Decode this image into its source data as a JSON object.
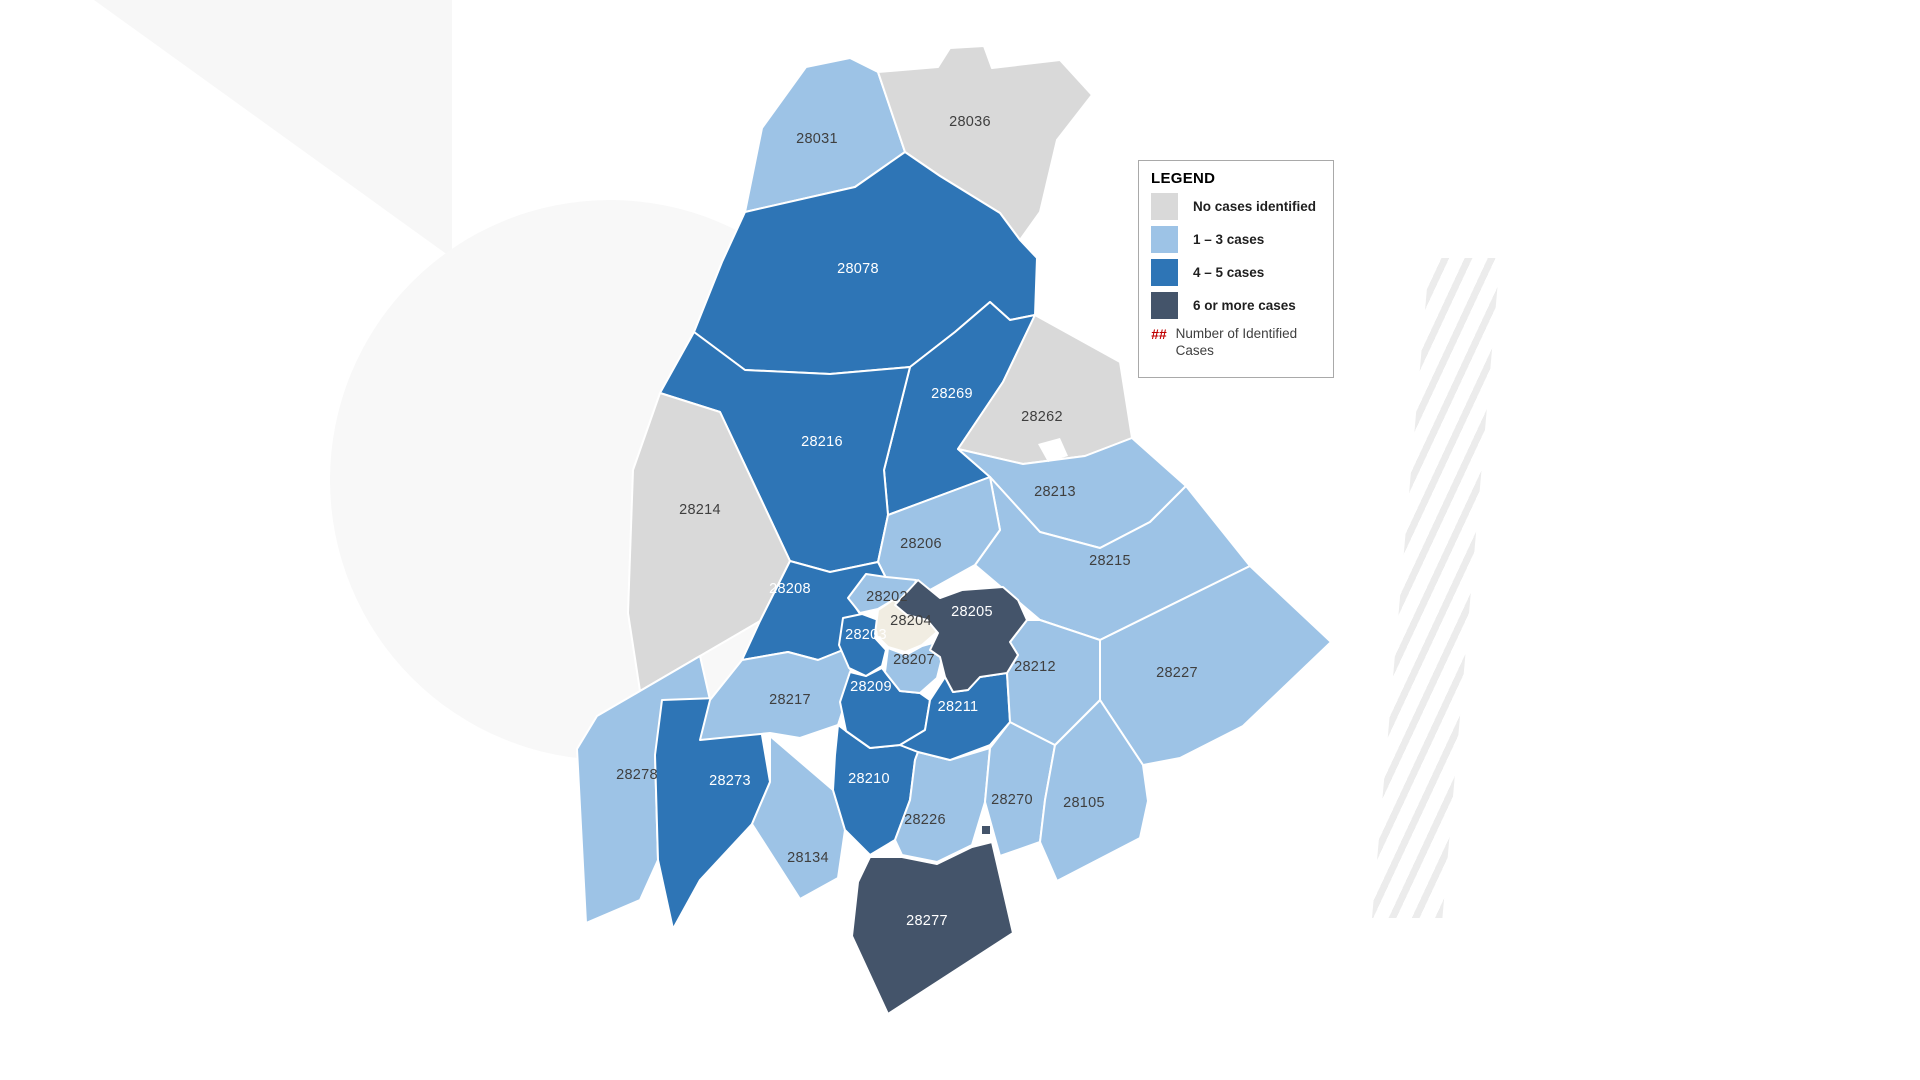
{
  "page": {
    "background_color": "#ffffff",
    "description": "County ZIP code choropleth map of identified cases"
  },
  "legend": {
    "title": "LEGEND",
    "items": [
      {
        "swatch_color": "#D9D9D9",
        "label": "No cases identified"
      },
      {
        "swatch_color": "#9DC3E6",
        "label": "1 – 3 cases"
      },
      {
        "swatch_color": "#2E75B6",
        "label": "4 – 5 cases"
      },
      {
        "swatch_color": "#44546A",
        "label": "6 or more cases"
      }
    ],
    "note_symbol": "##",
    "note_symbol_color": "#C00000",
    "note_text": "Number of Identified Cases"
  },
  "map": {
    "border_color": "#ffffff",
    "categories": {
      "none": {
        "label": "No cases identified",
        "color": "#D9D9D9",
        "text": "#3F3F3F"
      },
      "1-3": {
        "label": "1 – 3 cases",
        "color": "#9DC3E6",
        "text": "#3F3F3F"
      },
      "4-5": {
        "label": "4 – 5 cases",
        "color": "#2E75B6",
        "text": "#FFFFFF"
      },
      "6+": {
        "label": "6 or more cases",
        "color": "#44546A",
        "text": "#FFFFFF"
      }
    },
    "regions": [
      {
        "zip": "28031",
        "category": "1-3"
      },
      {
        "zip": "28036",
        "category": "none"
      },
      {
        "zip": "28078",
        "category": "4-5"
      },
      {
        "zip": "28269",
        "category": "4-5"
      },
      {
        "zip": "28262",
        "category": "none"
      },
      {
        "zip": "28213",
        "category": "1-3"
      },
      {
        "zip": "28215",
        "category": "1-3"
      },
      {
        "zip": "28227",
        "category": "1-3"
      },
      {
        "zip": "28216",
        "category": "4-5"
      },
      {
        "zip": "28214",
        "category": "none"
      },
      {
        "zip": "28206",
        "category": "1-3"
      },
      {
        "zip": "28208",
        "category": "4-5"
      },
      {
        "zip": "28278",
        "category": "1-3"
      },
      {
        "zip": "28273",
        "category": "4-5"
      },
      {
        "zip": "28217",
        "category": "1-3"
      },
      {
        "zip": "28134",
        "category": "1-3"
      },
      {
        "zip": "28210",
        "category": "4-5"
      },
      {
        "zip": "28226",
        "category": "1-3"
      },
      {
        "zip": "28270",
        "category": "1-3"
      },
      {
        "zip": "28105",
        "category": "1-3"
      },
      {
        "zip": "28277",
        "category": "6+"
      },
      {
        "zip": "28209",
        "category": "4-5"
      },
      {
        "zip": "28211",
        "category": "4-5"
      },
      {
        "zip": "28212",
        "category": "1-3"
      },
      {
        "zip": "28202",
        "category": "1-3"
      },
      {
        "zip": "28203",
        "category": "4-5"
      },
      {
        "zip": "28204",
        "category": "no_data",
        "color": "#F1EDE2",
        "label_color": "#3F3F3F"
      },
      {
        "zip": "28207",
        "category": "1-3"
      },
      {
        "zip": "28205",
        "category": "6+"
      }
    ]
  }
}
